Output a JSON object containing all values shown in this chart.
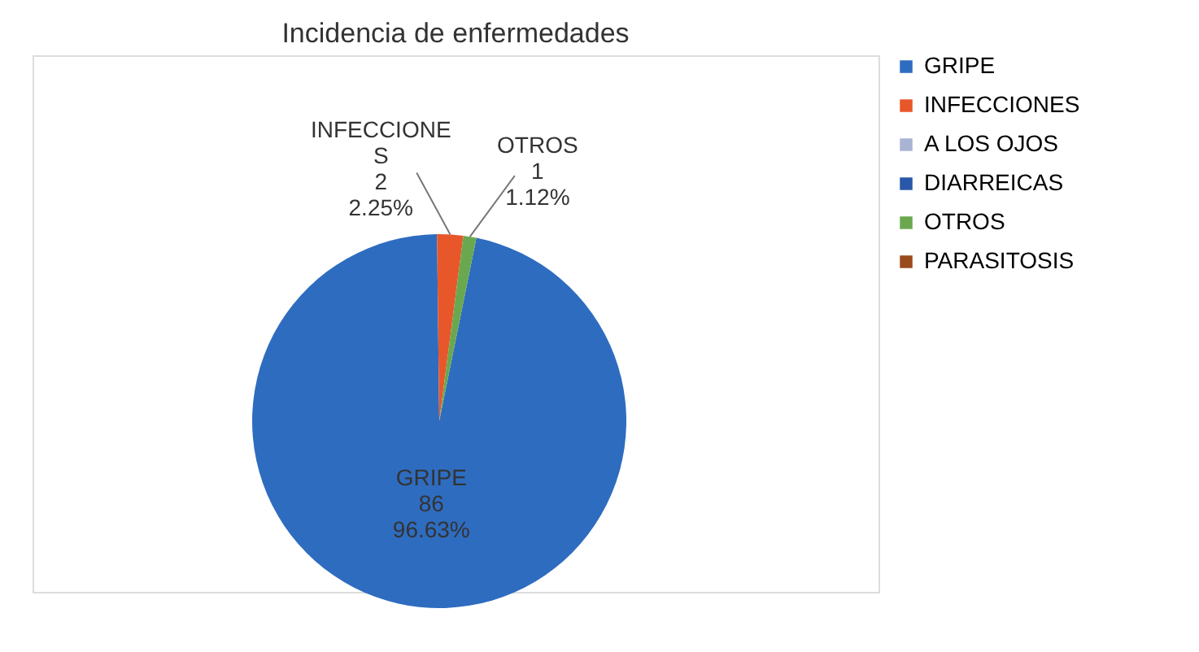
{
  "chart_data": {
    "type": "pie",
    "title": "Incidencia de enfermedades",
    "categories": [
      "GRIPE",
      "INFECCIONES",
      "A LOS OJOS",
      "DIARREICAS",
      "OTROS",
      "PARASITOSIS"
    ],
    "values": [
      86,
      2,
      0,
      0,
      1,
      0
    ],
    "colors": [
      "#2e6cc0",
      "#e8572a",
      "#a9b4d4",
      "#2a58a8",
      "#6aa84f",
      "#9a4a1c"
    ],
    "value_labels": [
      "GRIPE\n86\n96.63%",
      "INFECCIONE\nS\n2\n2.25%",
      null,
      null,
      "OTROS\n1\n1.12%",
      null
    ],
    "legend": "right"
  }
}
